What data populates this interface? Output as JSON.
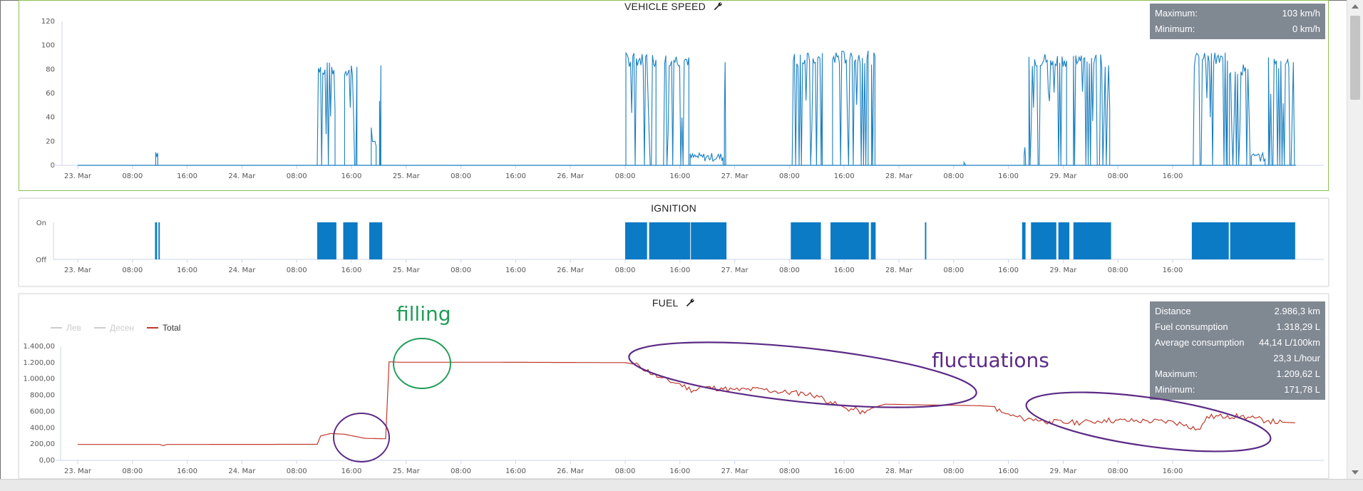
{
  "colors": {
    "speed": "#1a7fc1",
    "ignition": "#0b7bc6",
    "fuel_total": "#c0392b",
    "legend_inactive": "#cccccc",
    "stats_bg": "#808892",
    "filling_annot": "#1f9e55",
    "fluct_annot": "#5b2a86"
  },
  "x_ticks": [
    "23. Mar",
    "08:00",
    "16:00",
    "24. Mar",
    "08:00",
    "16:00",
    "25. Mar",
    "08:00",
    "16:00",
    "26. Mar",
    "08:00",
    "16:00",
    "27. Mar",
    "08:00",
    "16:00",
    "28. Mar",
    "08:00",
    "16:00",
    "29. Mar",
    "08:00",
    "16:00"
  ],
  "charts": [
    {
      "id": "speed",
      "title": "VEHICLE SPEED",
      "type": "line",
      "x_unit": "hours since 23. Mar 00:00",
      "y_ticks": [
        "0",
        "20",
        "40",
        "60",
        "80",
        "100",
        "120"
      ],
      "ylim": [
        0,
        120
      ],
      "stats": [
        {
          "label": "Maximum:",
          "value": "103 km/h"
        },
        {
          "label": "Minimum:",
          "value": "0 km/h"
        }
      ],
      "trips": [
        {
          "start": 11.4,
          "end": 11.7,
          "level": 12
        },
        {
          "start": 35.0,
          "end": 37.6,
          "level": 80
        },
        {
          "start": 39.0,
          "end": 40.8,
          "level": 80
        },
        {
          "start": 42.9,
          "end": 43.6,
          "level": 25
        },
        {
          "start": 44.1,
          "end": 44.3,
          "level": 80
        },
        {
          "start": 80.1,
          "end": 84.5,
          "level": 88
        },
        {
          "start": 85.6,
          "end": 89.3,
          "level": 88
        },
        {
          "start": 89.5,
          "end": 94.3,
          "level": 8
        },
        {
          "start": 94.5,
          "end": 94.7,
          "level": 88
        },
        {
          "start": 104.4,
          "end": 108.8,
          "level": 88
        },
        {
          "start": 110.3,
          "end": 115.5,
          "level": 90
        },
        {
          "start": 116.0,
          "end": 116.5,
          "level": 88
        },
        {
          "start": 129.5,
          "end": 129.7,
          "level": 2
        },
        {
          "start": 138.3,
          "end": 138.5,
          "level": 12
        },
        {
          "start": 139.0,
          "end": 144.5,
          "level": 88
        },
        {
          "start": 145.5,
          "end": 150.8,
          "level": 88
        },
        {
          "start": 163.0,
          "end": 168.0,
          "level": 88
        },
        {
          "start": 168.3,
          "end": 171.5,
          "level": 80
        },
        {
          "start": 171.5,
          "end": 173.5,
          "level": 8
        },
        {
          "start": 174.0,
          "end": 177.8,
          "level": 85
        }
      ]
    },
    {
      "id": "ignition",
      "title": "IGNITION",
      "type": "area",
      "y_ticks": [
        "Off",
        "On"
      ],
      "on_intervals": [
        [
          11.3,
          11.6
        ],
        [
          11.8,
          12.0
        ],
        [
          35.0,
          37.8
        ],
        [
          38.8,
          40.9
        ],
        [
          42.6,
          44.5
        ],
        [
          80.0,
          83.2
        ],
        [
          83.5,
          89.5
        ],
        [
          89.6,
          94.8
        ],
        [
          104.2,
          108.6
        ],
        [
          110.0,
          115.6
        ],
        [
          115.9,
          116.6
        ],
        [
          123.8,
          124.0
        ],
        [
          138.0,
          138.5
        ],
        [
          139.3,
          143.0
        ],
        [
          143.3,
          144.9
        ],
        [
          145.5,
          151.0
        ],
        [
          162.8,
          168.2
        ],
        [
          168.4,
          177.9
        ]
      ]
    },
    {
      "id": "fuel",
      "title": "FUEL",
      "type": "line",
      "y_ticks": [
        "0,00",
        "200,00",
        "400,00",
        "600,00",
        "800,00",
        "1.000,00",
        "1.200,00",
        "1.400,00"
      ],
      "ylim": [
        0,
        1400
      ],
      "legend": [
        {
          "name": "Лев",
          "active": false
        },
        {
          "name": "Десен",
          "active": false
        },
        {
          "name": "Total",
          "active": true
        }
      ],
      "series_total": [
        [
          0,
          195
        ],
        [
          12.0,
          195
        ],
        [
          12.5,
          180
        ],
        [
          13,
          195
        ],
        [
          35,
          197
        ],
        [
          35.5,
          300
        ],
        [
          37,
          330
        ],
        [
          39,
          320
        ],
        [
          42,
          270
        ],
        [
          45,
          265
        ],
        [
          45.5,
          1210
        ],
        [
          47,
          1205
        ],
        [
          60,
          1205
        ],
        [
          80,
          1200
        ],
        [
          82,
          1170
        ],
        [
          85,
          1020
        ],
        [
          88,
          940
        ],
        [
          90,
          860
        ],
        [
          91,
          905
        ],
        [
          94,
          890
        ],
        [
          96,
          870
        ],
        [
          100,
          880
        ],
        [
          102,
          850
        ],
        [
          106,
          830
        ],
        [
          108,
          800
        ],
        [
          110,
          720
        ],
        [
          112,
          650
        ],
        [
          114,
          620
        ],
        [
          115,
          580
        ],
        [
          116,
          640
        ],
        [
          118,
          690
        ],
        [
          124,
          680
        ],
        [
          129,
          675
        ],
        [
          132,
          670
        ],
        [
          134,
          660
        ],
        [
          135,
          590
        ],
        [
          138,
          520
        ],
        [
          140,
          510
        ],
        [
          142,
          480
        ],
        [
          145,
          470
        ],
        [
          148,
          480
        ],
        [
          150,
          500
        ],
        [
          152,
          495
        ],
        [
          156,
          490
        ],
        [
          160,
          480
        ],
        [
          162,
          440
        ],
        [
          164,
          380
        ],
        [
          165,
          540
        ],
        [
          168,
          550
        ],
        [
          170,
          545
        ],
        [
          172,
          520
        ],
        [
          174,
          490
        ],
        [
          176,
          470
        ],
        [
          177.9,
          460
        ]
      ],
      "stats": [
        {
          "label": "Distance",
          "value": "2.986,3 km"
        },
        {
          "label": "Fuel consumption",
          "value": "1.318,29 L"
        },
        {
          "label": "Average consumption",
          "value": "44,14 L/100km"
        },
        {
          "label": "",
          "value": "23,3 L/hour"
        },
        {
          "label": "Maximum:",
          "value": "1.209,62 L"
        },
        {
          "label": "Minimum:",
          "value": "171,78 L"
        }
      ]
    }
  ],
  "annotations": {
    "filling": "filling",
    "fluctuations": "fluctuations"
  }
}
